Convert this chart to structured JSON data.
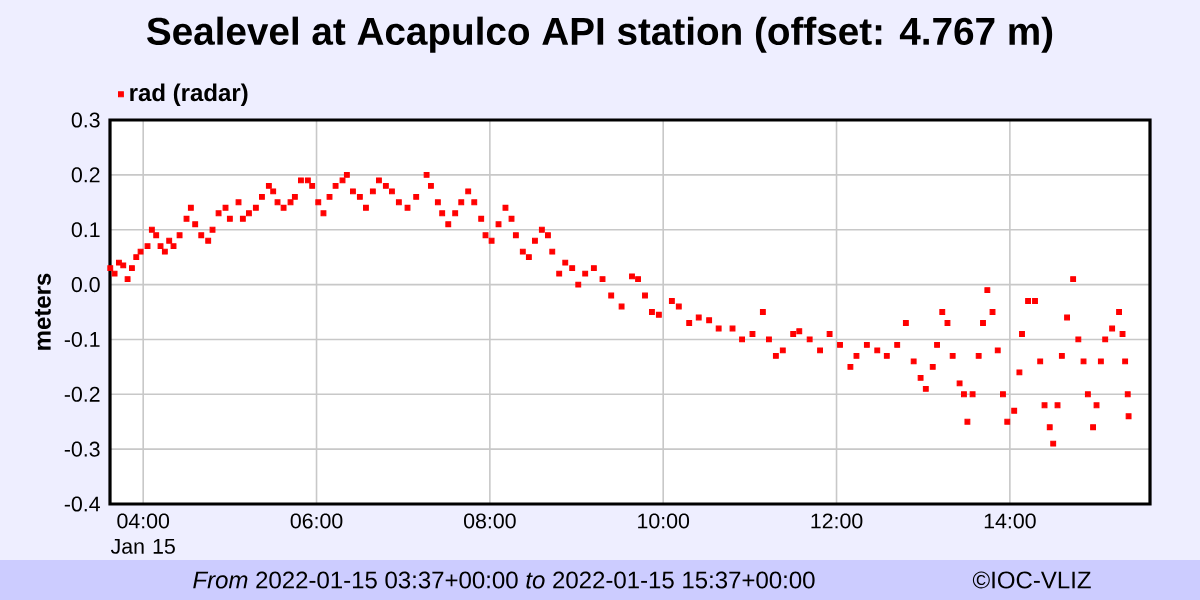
{
  "chart_data": {
    "type": "scatter",
    "title": "Sealevel at Acapulco API station (offset: 4.767 m)",
    "ylabel": "meters",
    "xlim": [
      3.617,
      15.617
    ],
    "ylim": [
      -0.4,
      0.3
    ],
    "xticks": [
      {
        "value": 4,
        "label": "04:00 Jan 15"
      },
      {
        "value": 6,
        "label": "06:00"
      },
      {
        "value": 8,
        "label": "08:00"
      },
      {
        "value": 10,
        "label": "10:00"
      },
      {
        "value": 12,
        "label": "12:00"
      },
      {
        "value": 14,
        "label": "14:00"
      }
    ],
    "yticks": [
      -0.4,
      -0.3,
      -0.2,
      -0.1,
      {
        "value": 0,
        "label": "0.0"
      },
      0.1,
      0.2,
      0.3
    ],
    "grid": true,
    "legend": "top left",
    "marker": "square",
    "annotations": [
      "*From* 2022-01-15 03:37+00:00 *to* 2022-01-15 15:37+00:00",
      "©IOC-VLIZ"
    ],
    "series": [
      {
        "name": "rad (radar)",
        "color": "#ff0000",
        "x": [
          3.62,
          3.67,
          3.72,
          3.77,
          3.82,
          3.87,
          3.92,
          3.97,
          4.05,
          4.1,
          4.15,
          4.2,
          4.25,
          4.3,
          4.35,
          4.42,
          4.5,
          4.55,
          4.6,
          4.67,
          4.75,
          4.8,
          4.87,
          4.95,
          5.0,
          5.1,
          5.15,
          5.22,
          5.3,
          5.37,
          5.45,
          5.5,
          5.55,
          5.62,
          5.7,
          5.75,
          5.82,
          5.9,
          5.95,
          6.02,
          6.08,
          6.15,
          6.22,
          6.3,
          6.35,
          6.42,
          6.5,
          6.57,
          6.65,
          6.72,
          6.8,
          6.87,
          6.95,
          7.05,
          7.15,
          7.27,
          7.32,
          7.4,
          7.45,
          7.52,
          7.6,
          7.67,
          7.75,
          7.82,
          7.9,
          7.95,
          8.02,
          8.1,
          8.18,
          8.25,
          8.3,
          8.38,
          8.45,
          8.52,
          8.6,
          8.67,
          8.72,
          8.8,
          8.87,
          8.95,
          9.02,
          9.1,
          9.2,
          9.3,
          9.4,
          9.52,
          9.64,
          9.71,
          9.79,
          9.87,
          9.95,
          10.1,
          10.18,
          10.3,
          10.41,
          10.53,
          10.64,
          10.8,
          10.91,
          11.03,
          11.15,
          11.22,
          11.3,
          11.38,
          11.5,
          11.57,
          11.69,
          11.81,
          11.92,
          12.04,
          12.16,
          12.23,
          12.35,
          12.47,
          12.58,
          12.7,
          12.8,
          12.89,
          12.97,
          13.03,
          13.11,
          13.16,
          13.22,
          13.28,
          13.34,
          13.42,
          13.47,
          13.51,
          13.57,
          13.64,
          13.69,
          13.74,
          13.8,
          13.86,
          13.92,
          13.97,
          14.05,
          14.11,
          14.14,
          14.21,
          14.29,
          14.35,
          14.4,
          14.46,
          14.5,
          14.55,
          14.6,
          14.66,
          14.73,
          14.79,
          14.85,
          14.9,
          14.96,
          15.0,
          15.05,
          15.1,
          15.18,
          15.26,
          15.3,
          15.33,
          15.36,
          15.37
        ],
        "values": [
          0.03,
          0.02,
          0.04,
          0.035,
          0.01,
          0.03,
          0.05,
          0.06,
          0.07,
          0.1,
          0.09,
          0.07,
          0.06,
          0.08,
          0.07,
          0.09,
          0.12,
          0.14,
          0.11,
          0.09,
          0.08,
          0.1,
          0.13,
          0.14,
          0.12,
          0.15,
          0.12,
          0.13,
          0.14,
          0.16,
          0.18,
          0.17,
          0.15,
          0.14,
          0.15,
          0.16,
          0.19,
          0.19,
          0.18,
          0.15,
          0.13,
          0.16,
          0.18,
          0.19,
          0.2,
          0.17,
          0.16,
          0.14,
          0.17,
          0.19,
          0.18,
          0.17,
          0.15,
          0.14,
          0.16,
          0.2,
          0.18,
          0.15,
          0.13,
          0.11,
          0.13,
          0.15,
          0.17,
          0.15,
          0.12,
          0.09,
          0.08,
          0.11,
          0.14,
          0.12,
          0.09,
          0.06,
          0.05,
          0.08,
          0.1,
          0.09,
          0.06,
          0.02,
          0.04,
          0.03,
          0.0,
          0.02,
          0.03,
          0.01,
          -0.02,
          -0.04,
          0.015,
          0.01,
          -0.02,
          -0.05,
          -0.055,
          -0.03,
          -0.04,
          -0.07,
          -0.06,
          -0.065,
          -0.08,
          -0.08,
          -0.1,
          -0.09,
          -0.05,
          -0.1,
          -0.13,
          -0.12,
          -0.09,
          -0.085,
          -0.1,
          -0.12,
          -0.09,
          -0.11,
          -0.15,
          -0.13,
          -0.11,
          -0.12,
          -0.13,
          -0.11,
          -0.07,
          -0.14,
          -0.17,
          -0.19,
          -0.15,
          -0.11,
          -0.05,
          -0.07,
          -0.13,
          -0.18,
          -0.2,
          -0.25,
          -0.2,
          -0.13,
          -0.07,
          -0.01,
          -0.05,
          -0.12,
          -0.2,
          -0.25,
          -0.23,
          -0.16,
          -0.09,
          -0.03,
          -0.03,
          -0.14,
          -0.22,
          -0.26,
          -0.29,
          -0.22,
          -0.13,
          -0.06,
          0.01,
          -0.1,
          -0.14,
          -0.2,
          -0.26,
          -0.22,
          -0.14,
          -0.1,
          -0.08,
          -0.05,
          -0.09,
          -0.14,
          -0.2,
          -0.24
        ]
      }
    ]
  }
}
